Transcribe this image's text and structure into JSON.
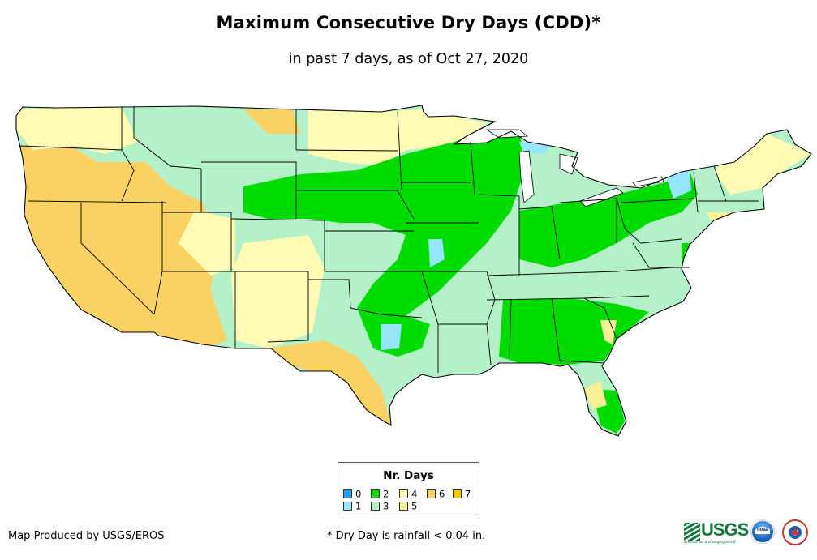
{
  "title": "Maximum Consecutive Dry Days (CDD)*",
  "subtitle": "in past 7 days, as of Oct 27, 2020",
  "legend": {
    "title": "Nr. Days",
    "items": [
      {
        "label": "0",
        "color": "#1ea1ff"
      },
      {
        "label": "2",
        "color": "#00dc00"
      },
      {
        "label": "4",
        "color": "#fffab4"
      },
      {
        "label": "6",
        "color": "#fad264"
      },
      {
        "label": "7",
        "color": "#fac800"
      },
      {
        "label": "1",
        "color": "#96e6ff"
      },
      {
        "label": "3",
        "color": "#b4f0c8"
      },
      {
        "label": "5",
        "color": "#faf096"
      }
    ]
  },
  "footer": {
    "credit": "Map Produced by USGS/EROS",
    "note": "* Dry Day is rainfall < 0.04 in."
  },
  "logos": {
    "usgs_text": "USGS",
    "usgs_tagline": "science for a changing world",
    "noaa_text": "noaa"
  },
  "colors": {
    "state_border": "#000000",
    "land_default": "#b4f0c8"
  }
}
